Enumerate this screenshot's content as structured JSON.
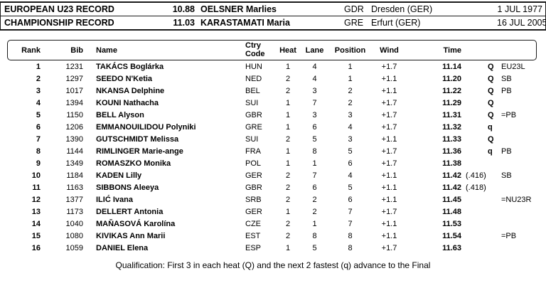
{
  "colors": {
    "text": "#000000",
    "line": "#1a1a1a",
    "background": "#ffffff"
  },
  "records": {
    "rows": [
      {
        "label": "EUROPEAN U23 RECORD",
        "mark": "10.88",
        "athlete": "OELSNER Marlies",
        "noc": "GDR",
        "venue": "Dresden (GER)",
        "date": "1 JUL 1977"
      },
      {
        "label": "CHAMPIONSHIP RECORD",
        "mark": "11.03",
        "athlete": "KARASTAMATI Maria",
        "noc": "GRE",
        "venue": "Erfurt (GER)",
        "date": "16 JUL 2005"
      }
    ]
  },
  "results_table": {
    "headers": {
      "rank": "Rank",
      "bib": "Bib",
      "name": "Name",
      "ctry_line1": "Ctry",
      "ctry_line2": "Code",
      "heat": "Heat",
      "lane": "Lane",
      "position": "Position",
      "wind": "Wind",
      "time": "Time"
    },
    "rows": [
      {
        "rank": "1",
        "bib": "1231",
        "name": "TAKÁCS Boglárka",
        "noc": "HUN",
        "heat": "1",
        "lane": "4",
        "position": "1",
        "wind": "+1.7",
        "time": "11.14",
        "time_frac": "",
        "qual": "Q",
        "note": "EU23L"
      },
      {
        "rank": "2",
        "bib": "1297",
        "name": "SEEDO N'Ketia",
        "noc": "NED",
        "heat": "2",
        "lane": "4",
        "position": "1",
        "wind": "+1.1",
        "time": "11.20",
        "time_frac": "",
        "qual": "Q",
        "note": "SB"
      },
      {
        "rank": "3",
        "bib": "1017",
        "name": "NKANSA Delphine",
        "noc": "BEL",
        "heat": "2",
        "lane": "3",
        "position": "2",
        "wind": "+1.1",
        "time": "11.22",
        "time_frac": "",
        "qual": "Q",
        "note": "PB"
      },
      {
        "rank": "4",
        "bib": "1394",
        "name": "KOUNI Nathacha",
        "noc": "SUI",
        "heat": "1",
        "lane": "7",
        "position": "2",
        "wind": "+1.7",
        "time": "11.29",
        "time_frac": "",
        "qual": "Q",
        "note": ""
      },
      {
        "rank": "5",
        "bib": "1150",
        "name": "BELL Alyson",
        "noc": "GBR",
        "heat": "1",
        "lane": "3",
        "position": "3",
        "wind": "+1.7",
        "time": "11.31",
        "time_frac": "",
        "qual": "Q",
        "note": "=PB"
      },
      {
        "rank": "6",
        "bib": "1206",
        "name": "EMMANOUILIDOU Polyniki",
        "noc": "GRE",
        "heat": "1",
        "lane": "6",
        "position": "4",
        "wind": "+1.7",
        "time": "11.32",
        "time_frac": "",
        "qual": "q",
        "note": ""
      },
      {
        "rank": "7",
        "bib": "1390",
        "name": "GUTSCHMIDT Melissa",
        "noc": "SUI",
        "heat": "2",
        "lane": "5",
        "position": "3",
        "wind": "+1.1",
        "time": "11.33",
        "time_frac": "",
        "qual": "Q",
        "note": ""
      },
      {
        "rank": "8",
        "bib": "1144",
        "name": "RIMLINGER Marie-ange",
        "noc": "FRA",
        "heat": "1",
        "lane": "8",
        "position": "5",
        "wind": "+1.7",
        "time": "11.36",
        "time_frac": "",
        "qual": "q",
        "note": "PB"
      },
      {
        "rank": "9",
        "bib": "1349",
        "name": "ROMASZKO Monika",
        "noc": "POL",
        "heat": "1",
        "lane": "1",
        "position": "6",
        "wind": "+1.7",
        "time": "11.38",
        "time_frac": "",
        "qual": "",
        "note": ""
      },
      {
        "rank": "10",
        "bib": "1184",
        "name": "KADEN Lilly",
        "noc": "GER",
        "heat": "2",
        "lane": "7",
        "position": "4",
        "wind": "+1.1",
        "time": "11.42",
        "time_frac": "(.416)",
        "qual": "",
        "note": "SB"
      },
      {
        "rank": "11",
        "bib": "1163",
        "name": "SIBBONS Aleeya",
        "noc": "GBR",
        "heat": "2",
        "lane": "6",
        "position": "5",
        "wind": "+1.1",
        "time": "11.42",
        "time_frac": "(.418)",
        "qual": "",
        "note": ""
      },
      {
        "rank": "12",
        "bib": "1377",
        "name": "ILIĆ Ivana",
        "noc": "SRB",
        "heat": "2",
        "lane": "2",
        "position": "6",
        "wind": "+1.1",
        "time": "11.45",
        "time_frac": "",
        "qual": "",
        "note": "=NU23R"
      },
      {
        "rank": "13",
        "bib": "1173",
        "name": "DELLERT Antonia",
        "noc": "GER",
        "heat": "1",
        "lane": "2",
        "position": "7",
        "wind": "+1.7",
        "time": "11.48",
        "time_frac": "",
        "qual": "",
        "note": ""
      },
      {
        "rank": "14",
        "bib": "1040",
        "name": "MAŇASOVÁ Karolína",
        "noc": "CZE",
        "heat": "2",
        "lane": "1",
        "position": "7",
        "wind": "+1.1",
        "time": "11.53",
        "time_frac": "",
        "qual": "",
        "note": ""
      },
      {
        "rank": "15",
        "bib": "1080",
        "name": "KIVIKAS Ann Marii",
        "noc": "EST",
        "heat": "2",
        "lane": "8",
        "position": "8",
        "wind": "+1.1",
        "time": "11.54",
        "time_frac": "",
        "qual": "",
        "note": "=PB"
      },
      {
        "rank": "16",
        "bib": "1059",
        "name": "DANIEL Elena",
        "noc": "ESP",
        "heat": "1",
        "lane": "5",
        "position": "8",
        "wind": "+1.7",
        "time": "11.63",
        "time_frac": "",
        "qual": "",
        "note": ""
      }
    ]
  },
  "footer": {
    "text": "Qualification: First 3 in each heat (Q) and the next 2 fastest (q) advance to the Final"
  }
}
